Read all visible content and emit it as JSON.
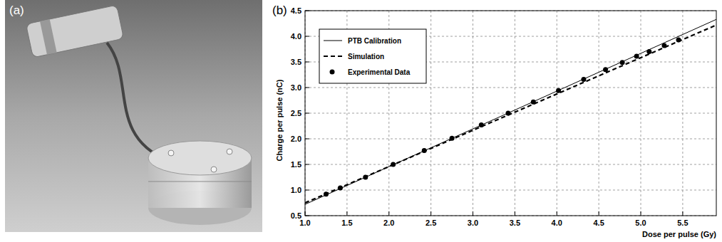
{
  "panel_labels": [
    "(a)",
    "(b)"
  ],
  "chart_data": {
    "type": "line",
    "x_label": "Dose per pulse (Gy)",
    "y_label": "Charge per pulse (nC)",
    "xlim": [
      1.0,
      5.9
    ],
    "ylim": [
      0.5,
      4.5
    ],
    "xticks": [
      {
        "value": 1,
        "label": "1.0"
      },
      1.5,
      {
        "value": 2,
        "label": "2.0"
      },
      2.5,
      {
        "value": 3,
        "label": "3.0"
      },
      3.5,
      {
        "value": 4,
        "label": "4.0"
      },
      4.5,
      {
        "value": 5,
        "label": "5.0"
      },
      5.5
    ],
    "yticks": [
      0.5,
      {
        "value": 1,
        "label": "1.0"
      },
      1.5,
      {
        "value": 2,
        "label": "2.0"
      },
      2.5,
      {
        "value": 3,
        "label": "3.0"
      },
      3.5,
      {
        "value": 4,
        "label": "4.0"
      },
      4.5
    ],
    "grid": true,
    "legend": "upper-left",
    "series": [
      {
        "name": "PTB Calibration",
        "type": "line",
        "line_style": "solid",
        "color": "#000000",
        "x": [
          1.0,
          5.9
        ],
        "values": [
          0.72,
          4.33
        ]
      },
      {
        "name": "Simulation",
        "type": "line",
        "line_style": "dashed",
        "color": "#000000",
        "x": [
          1.0,
          5.9
        ],
        "values": [
          0.75,
          4.22
        ]
      },
      {
        "name": "Experimental Data",
        "type": "scatter",
        "marker": "circle",
        "color": "#000000",
        "x": [
          1.25,
          1.42,
          1.72,
          2.05,
          2.42,
          2.75,
          3.1,
          3.42,
          3.72,
          4.02,
          4.32,
          4.58,
          4.78,
          4.95,
          5.1,
          5.28,
          5.45
        ],
        "values": [
          0.92,
          1.04,
          1.25,
          1.5,
          1.77,
          2.01,
          2.27,
          2.5,
          2.72,
          2.94,
          3.16,
          3.35,
          3.49,
          3.61,
          3.7,
          3.82,
          3.93
        ]
      }
    ]
  }
}
